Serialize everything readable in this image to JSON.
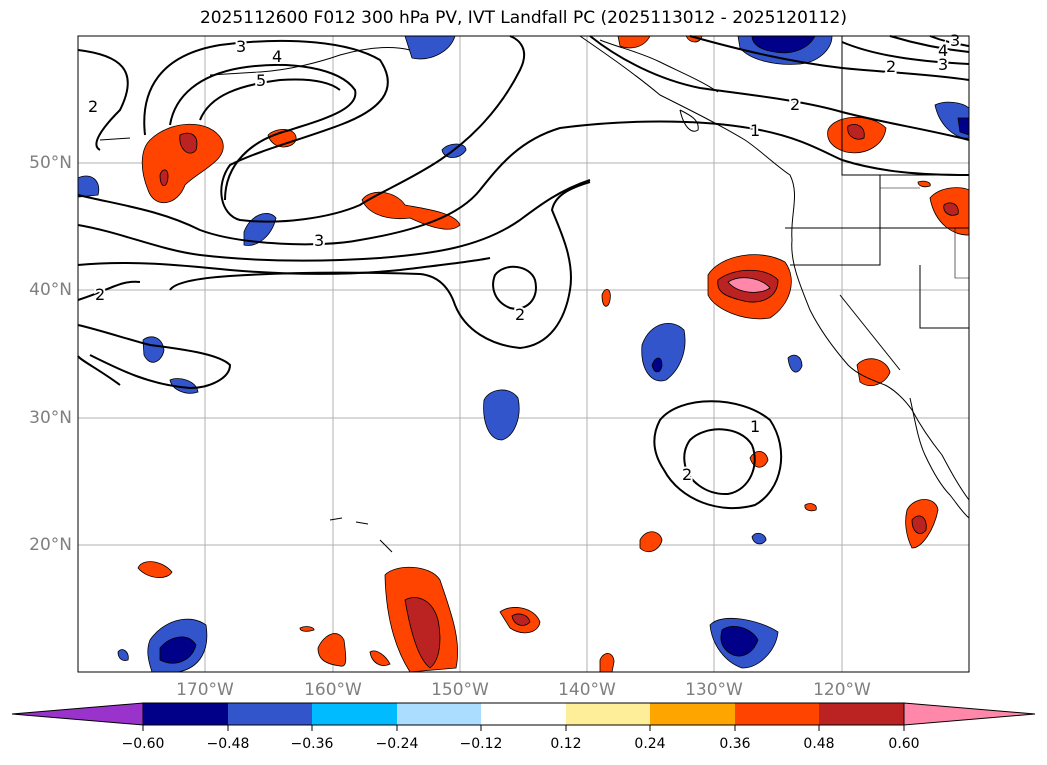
{
  "title": "2025112600 F012 300 hPa PV, IVT Landfall PC (2025113012 - 2025120112)",
  "map": {
    "lat_labels": [
      "50°N",
      "40°N",
      "30°N",
      "20°N"
    ],
    "lon_labels": [
      "170°W",
      "160°W",
      "150°W",
      "140°W",
      "130°W",
      "120°W"
    ],
    "contour_labels": [
      "3",
      "4",
      "5",
      "2",
      "2",
      "2",
      "3",
      "4",
      "3",
      "2",
      "3",
      "2",
      "1",
      "2",
      "1"
    ]
  },
  "colorbar": {
    "ticks": [
      "−0.60",
      "−0.48",
      "−0.36",
      "−0.24",
      "−0.12",
      "0.12",
      "0.24",
      "0.36",
      "0.48",
      "0.60"
    ],
    "colors": [
      "#9933cc",
      "#000088",
      "#3355cc",
      "#00bbff",
      "#aaddff",
      "#ffffff",
      "#ffee99",
      "#ffa500",
      "#ff4400",
      "#bb2222",
      "#ff88aa"
    ]
  }
}
